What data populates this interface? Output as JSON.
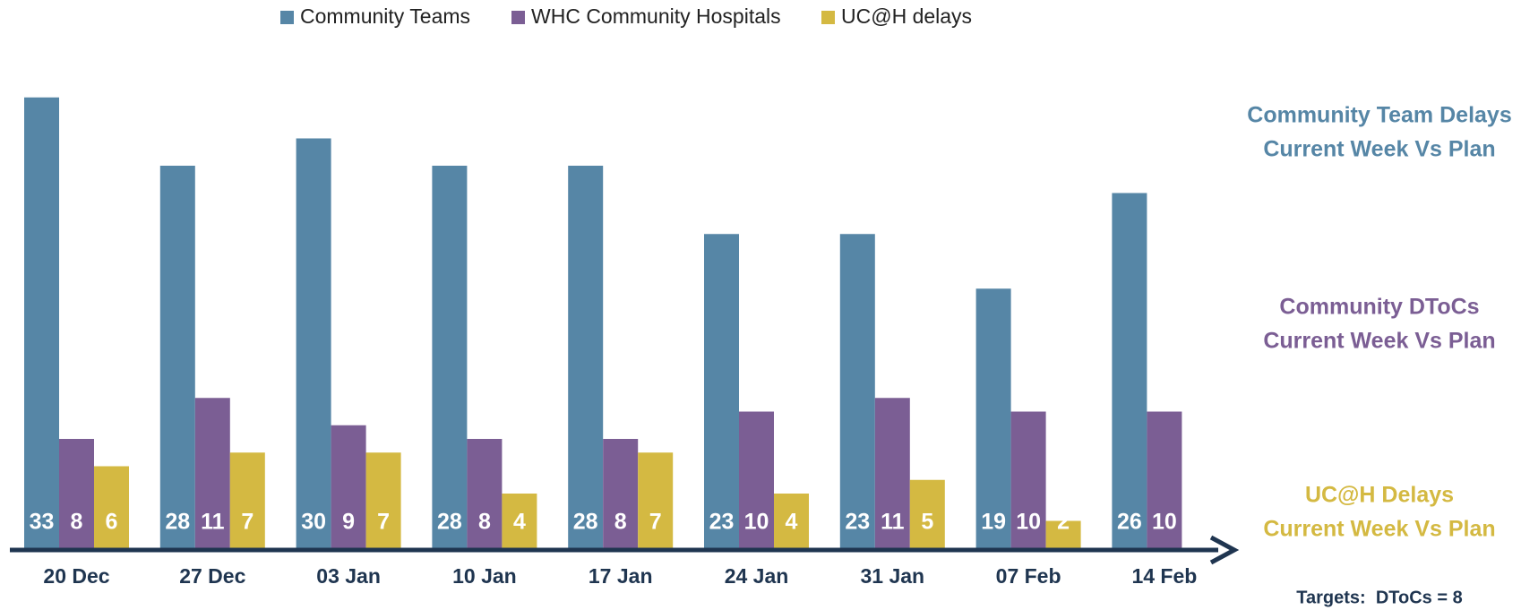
{
  "chart_data": {
    "type": "bar",
    "categories": [
      "20 Dec",
      "27 Dec",
      "03 Jan",
      "10 Jan",
      "17 Jan",
      "24 Jan",
      "31 Jan",
      "07 Feb",
      "14 Feb"
    ],
    "series": [
      {
        "name": "Community Teams",
        "color": "#5686a6",
        "values": [
          33,
          28,
          30,
          28,
          28,
          23,
          23,
          19,
          26
        ]
      },
      {
        "name": "WHC Community Hospitals",
        "color": "#7b5e94",
        "values": [
          8,
          11,
          9,
          8,
          8,
          10,
          11,
          10,
          10
        ]
      },
      {
        "name": "UC@H delays",
        "color": "#d4b942",
        "values": [
          6,
          7,
          7,
          4,
          7,
          4,
          5,
          2,
          null
        ]
      }
    ],
    "legend": "top",
    "axis_color": "#1f3550",
    "annotations": [
      {
        "lines": [
          "Community Team Delays",
          "Current Week Vs Plan"
        ],
        "color": "#5686a6"
      },
      {
        "lines": [
          "Community DToCs",
          "Current Week Vs Plan"
        ],
        "color": "#7b5e94"
      },
      {
        "lines": [
          "UC@H Delays",
          "Current Week Vs Plan"
        ],
        "color": "#d4b942"
      }
    ],
    "targets": "Targets:  DToCs = 8"
  }
}
